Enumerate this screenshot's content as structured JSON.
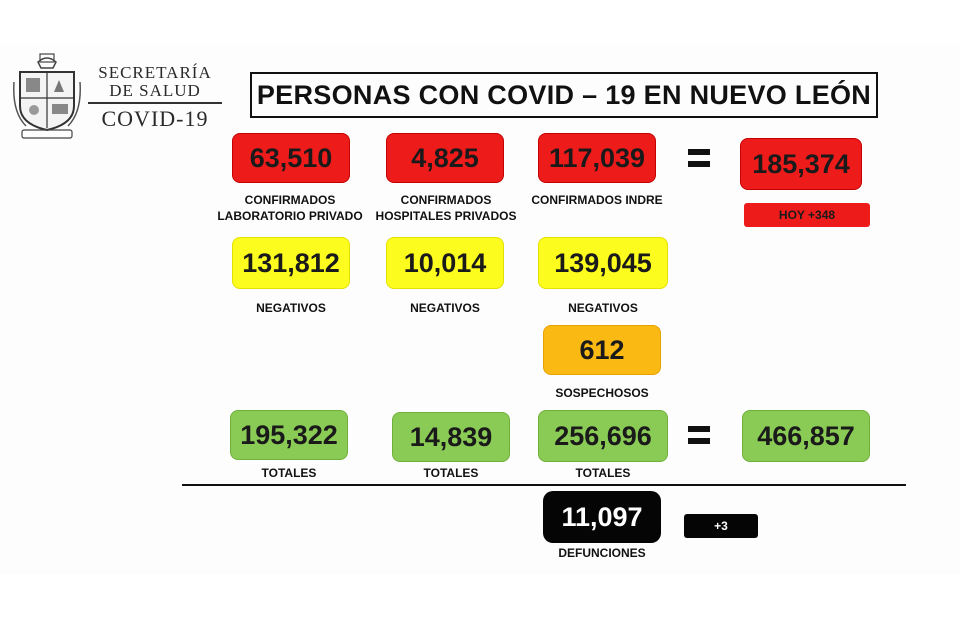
{
  "header": {
    "org_line1": "SECRETARÍA",
    "org_line2": "DE SALUD",
    "org_line3": "COVID-19",
    "title": "PERSONAS CON COVID – 19 EN NUEVO LEÓN"
  },
  "confirmed": {
    "private_lab": {
      "value": "63,510",
      "label_1": "CONFIRMADOS",
      "label_2": "LABORATORIO PRIVADO"
    },
    "private_hospitals": {
      "value": "4,825",
      "label_1": "CONFIRMADOS",
      "label_2": "HOSPITALES PRIVADOS"
    },
    "indre": {
      "value": "117,039",
      "label": "CONFIRMADOS INDRE"
    },
    "total": {
      "value": "185,374"
    },
    "today": "HOY +348"
  },
  "negatives": {
    "col1": {
      "value": "131,812",
      "label": "NEGATIVOS"
    },
    "col2": {
      "value": "10,014",
      "label": "NEGATIVOS"
    },
    "col3": {
      "value": "139,045",
      "label": "NEGATIVOS"
    }
  },
  "suspects": {
    "value": "612",
    "label": "SOSPECHOSOS"
  },
  "totals": {
    "col1": {
      "value": "195,322",
      "label": "TOTALES"
    },
    "col2": {
      "value": "14,839",
      "label": "TOTALES"
    },
    "col3": {
      "value": "256,696",
      "label": "TOTALES"
    },
    "grand": {
      "value": "466,857"
    }
  },
  "deaths": {
    "value": "11,097",
    "label": "DEFUNCIONES",
    "today": "+3"
  },
  "colors": {
    "red": "#ee1b1b",
    "yellow": "#fdfc1f",
    "orange": "#fbb913",
    "green": "#8acb55",
    "black": "#050505"
  },
  "icons": {
    "logo": "nuevo-leon-coat-of-arms-icon",
    "equals": "equals-sign-icon"
  }
}
